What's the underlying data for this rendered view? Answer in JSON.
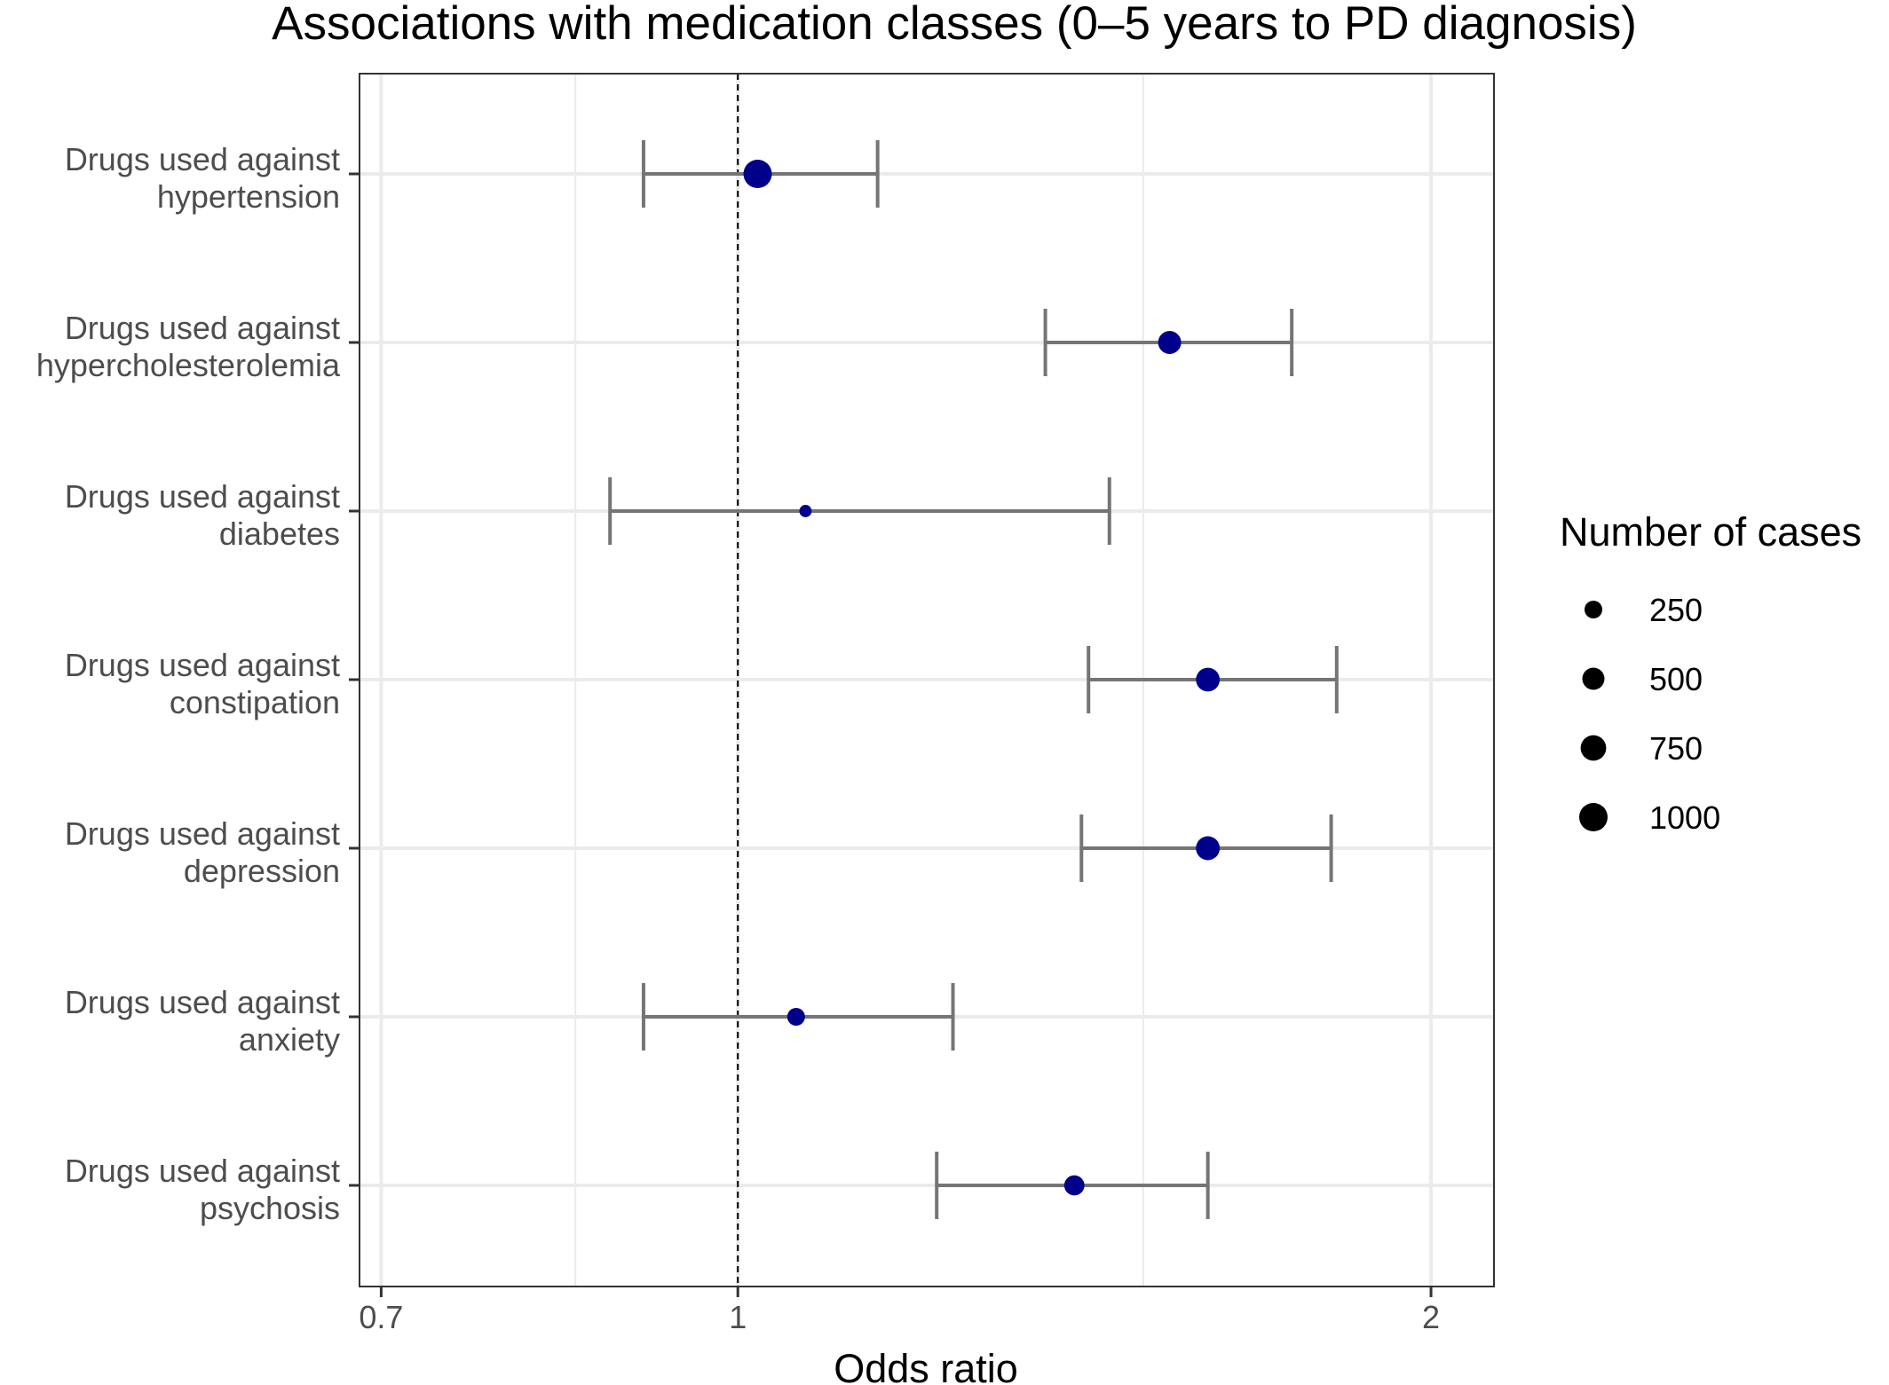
{
  "chart_data": {
    "type": "scatter",
    "subtype": "forest-plot",
    "title": "Associations with medication classes (0–5 years to PD diagnosis)",
    "xlabel": "Odds ratio",
    "ylabel": "",
    "x_scale": "log",
    "xlim": [
      0.685,
      2.13
    ],
    "x_ticks": [
      0.7,
      1,
      2
    ],
    "x_tick_labels": [
      "0.7",
      "1",
      "2"
    ],
    "x_minor_gridlines": [
      0.85,
      1.5
    ],
    "reference_line": 1,
    "grid": true,
    "point_color": "#00008b",
    "errorbar_color": "#757575",
    "categories": [
      [
        "Drugs used against",
        "hypertension"
      ],
      [
        "Drugs used against",
        "hypercholesterolemia"
      ],
      [
        "Drugs used against",
        "diabetes"
      ],
      [
        "Drugs used against",
        "constipation"
      ],
      [
        "Drugs used against",
        "depression"
      ],
      [
        "Drugs used against",
        "anxiety"
      ],
      [
        "Drugs used against",
        "psychosis"
      ]
    ],
    "points": [
      {
        "or": 1.02,
        "lower": 0.91,
        "upper": 1.15,
        "cases": 1000
      },
      {
        "or": 1.54,
        "lower": 1.36,
        "upper": 1.74,
        "cases": 560
      },
      {
        "or": 1.07,
        "lower": 0.88,
        "upper": 1.45,
        "cases": 60
      },
      {
        "or": 1.6,
        "lower": 1.42,
        "upper": 1.82,
        "cases": 610
      },
      {
        "or": 1.6,
        "lower": 1.41,
        "upper": 1.81,
        "cases": 620
      },
      {
        "or": 1.06,
        "lower": 0.91,
        "upper": 1.24,
        "cases": 250
      },
      {
        "or": 1.4,
        "lower": 1.22,
        "upper": 1.6,
        "cases": 380
      }
    ],
    "legend": {
      "title": "Number of cases",
      "position": "right",
      "entries": [
        {
          "label": "250",
          "value": 250
        },
        {
          "label": "500",
          "value": 500
        },
        {
          "label": "750",
          "value": 750
        },
        {
          "label": "1000",
          "value": 1000
        }
      ]
    }
  }
}
